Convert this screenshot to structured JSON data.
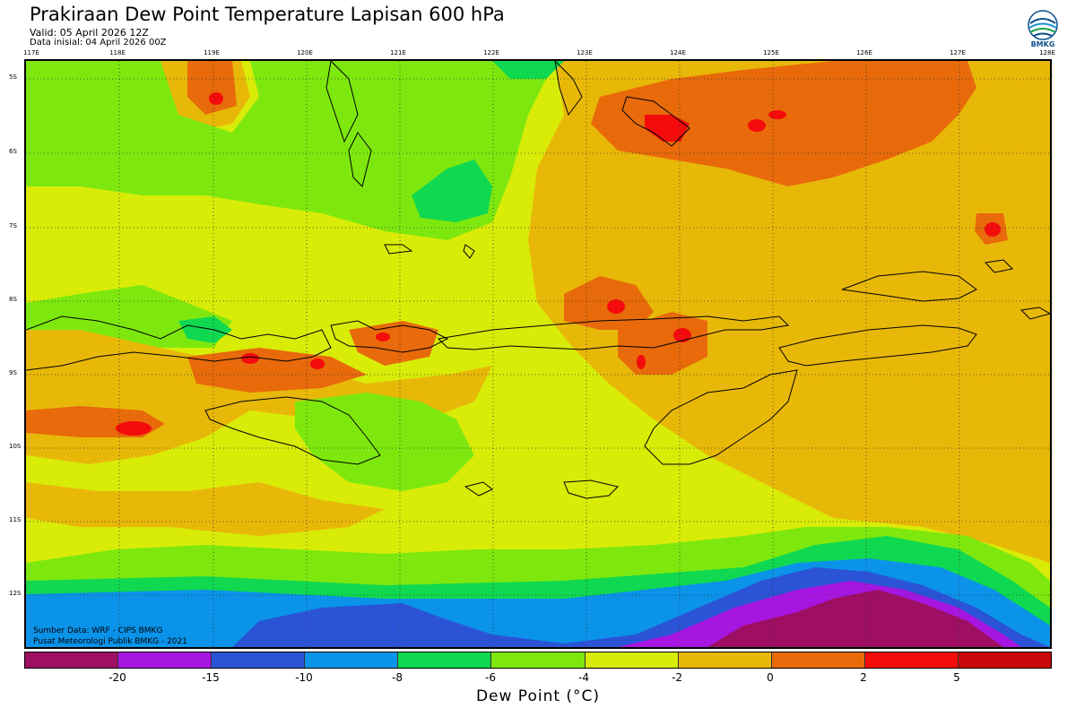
{
  "header": {
    "title": "Prakiraan Dew Point Temperature Lapisan 600 hPa",
    "valid": "Valid: 05 April 2026 12Z",
    "initial": "Data inisial: 04 April 2026 00Z"
  },
  "logo": {
    "text": "BMKG",
    "icon": "bmkg-logo"
  },
  "map": {
    "lon_labels": [
      "117E",
      "118E",
      "119E",
      "120E",
      "121E",
      "122E",
      "123E",
      "124E",
      "125E",
      "126E",
      "127E",
      "128E"
    ],
    "lat_labels": [
      "5S",
      "6S",
      "7S",
      "8S",
      "9S",
      "10S",
      "11S",
      "12S"
    ],
    "source_lines": [
      "Sumber Data: WRF - CIPS BMKG",
      "Pusat Meteorologi Publik BMKG - 2021"
    ]
  },
  "colorbar": {
    "colors": [
      "#9e0f63",
      "#a616e0",
      "#2b53d6",
      "#0a93e8",
      "#10d850",
      "#7ee80e",
      "#d8ec08",
      "#e8b808",
      "#e86a0a",
      "#f40c0c",
      "#c80808"
    ],
    "ticks": [
      "-20",
      "-15",
      "-10",
      "-8",
      "-6",
      "-4",
      "-2",
      "0",
      "2",
      "5"
    ],
    "label": "Dew Point (°C)"
  },
  "palette": {
    "magenta": "#9e0f63",
    "purple": "#a616e0",
    "blue": "#2b53d6",
    "lightblue": "#0a93e8",
    "green": "#10d850",
    "lightgreen": "#7ee80e",
    "yellow": "#d8ec08",
    "gold": "#e8b808",
    "orange": "#e86a0a",
    "red": "#f40c0c"
  }
}
